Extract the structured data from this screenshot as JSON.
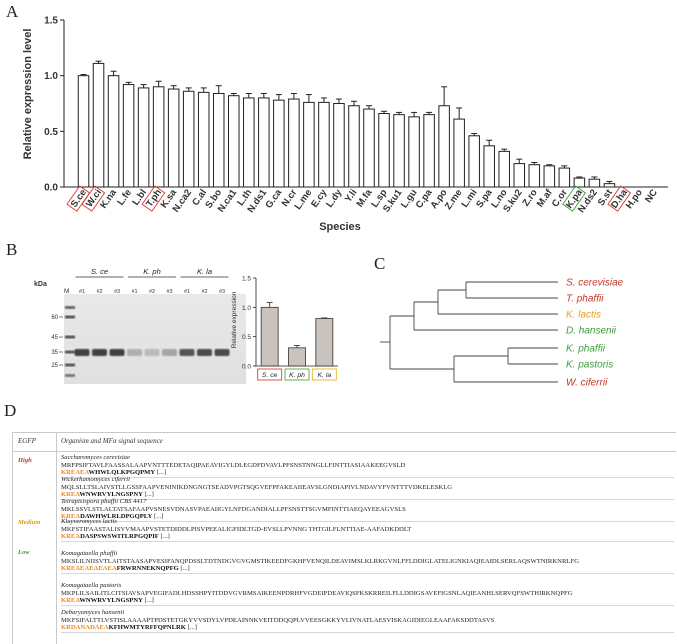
{
  "panels": {
    "a": "A",
    "b": "B",
    "c": "C",
    "d": "D"
  },
  "panel_a": {
    "chart_data": {
      "type": "bar",
      "title": "",
      "xlabel": "Species",
      "ylabel": "Relative expression level",
      "ylim": [
        0,
        1.5
      ],
      "yticks": [
        "0.0",
        "0.5",
        "1.0",
        "1.5"
      ],
      "categories": [
        "S.ce",
        "W.ci",
        "K.na",
        "L.fe",
        "L.bl",
        "T.ph",
        "K.sa",
        "N.ca2",
        "C.al",
        "S.bo",
        "N.ca1",
        "L.th",
        "N.ds1",
        "G.ca",
        "N.cr",
        "L.me",
        "E.cy",
        "L.dy",
        "Y.li",
        "M.fa",
        "L.sp",
        "S.ku1",
        "L.gu",
        "C.pa",
        "A.po",
        "Z.me",
        "L.mi",
        "S.pa",
        "L.no",
        "S.ku2",
        "Z.ro",
        "M.af",
        "C.or",
        "K.pa",
        "N.ds2",
        "S.st",
        "D.ha",
        "H.po",
        "NC"
      ],
      "values": [
        1.0,
        1.11,
        1.0,
        0.92,
        0.89,
        0.9,
        0.88,
        0.86,
        0.85,
        0.84,
        0.82,
        0.8,
        0.8,
        0.78,
        0.79,
        0.76,
        0.76,
        0.75,
        0.73,
        0.7,
        0.66,
        0.65,
        0.63,
        0.65,
        0.73,
        0.61,
        0.46,
        0.37,
        0.32,
        0.21,
        0.2,
        0.19,
        0.17,
        0.08,
        0.07,
        0.03,
        0.0,
        0.0,
        0.0
      ],
      "errors": [
        0.01,
        0.02,
        0.04,
        0.02,
        0.03,
        0.05,
        0.03,
        0.03,
        0.04,
        0.07,
        0.02,
        0.04,
        0.04,
        0.05,
        0.05,
        0.07,
        0.04,
        0.04,
        0.04,
        0.03,
        0.02,
        0.02,
        0.04,
        0.02,
        0.17,
        0.1,
        0.02,
        0.05,
        0.02,
        0.04,
        0.02,
        0.01,
        0.02,
        0.01,
        0.02,
        0.02,
        0.0,
        0.0,
        0.0
      ],
      "highlight_red": [
        "S.ce",
        "W.ci",
        "T.ph",
        "D.ha"
      ],
      "highlight_green": [
        "K.pa"
      ]
    }
  },
  "panel_b": {
    "gel": {
      "kda_label": "kDa",
      "marker_label": "M",
      "groups": [
        "S. ce",
        "K. ph",
        "K. la"
      ],
      "lanes": [
        "#1",
        "#2",
        "#3",
        "#1",
        "#2",
        "#3",
        "#1",
        "#2",
        "#3"
      ],
      "mw": [
        "60",
        "45",
        "35",
        "25"
      ]
    },
    "chart_data": {
      "type": "bar",
      "categories": [
        "S. ce",
        "K. ph",
        "K. la"
      ],
      "values": [
        1.0,
        0.31,
        0.81
      ],
      "errors": [
        0.08,
        0.04,
        0.01
      ],
      "ylabel": "Relative expression",
      "ylim": [
        0,
        1.5
      ],
      "yticks": [
        "0.0",
        "0.5",
        "1.0",
        "1.5"
      ],
      "box_colors": [
        "#d9483b",
        "#5aa644",
        "#e8b427"
      ]
    }
  },
  "panel_c": {
    "species": [
      {
        "name": "S. cerevisiae",
        "color": "#c0392b"
      },
      {
        "name": "T. phaffii",
        "color": "#c0392b"
      },
      {
        "name": "K. lactis",
        "color": "#e0a21b"
      },
      {
        "name": "D. hansenii",
        "color": "#3f9b3a"
      },
      {
        "name": "K. phaffii",
        "color": "#3f9b3a"
      },
      {
        "name": "K. pastoris",
        "color": "#3f9b3a"
      },
      {
        "name": "W. ciferrii",
        "color": "#c0392b"
      }
    ]
  },
  "panel_d": {
    "header": {
      "col1": "EGFP",
      "col2": "Organism and MFα signal sequence"
    },
    "levels": {
      "high": "High",
      "medium": "Medium",
      "low": "Low"
    },
    "level_colors": {
      "high": "#c0392b",
      "medium": "#d4a017",
      "low": "#3f9b3a"
    },
    "rows": [
      {
        "org": "Saccharomyces cerevisiae",
        "seq": "MRFPSIFTAVLFAASSALAAPVNTTTEDETAQIPAEAVIGYLDLEGDFDVAVLPFSNSTNNGLLFINTTIASIAAKEEGVSLD",
        "m1": "KREAEA",
        "m2": "",
        "tail": "WHWLQLKPGQPMY",
        "more": " [...]"
      },
      {
        "org": "Wickerhamomyces ciferrii",
        "seq": "MQLSLLTSLAIVSTLLGSSFAAPVENINIKDNGNGTSEADVPGTSQGVEFPFAKEAIIEAVSLGNDIAPIVLNDAVYFVNTTTVDKELESKLG",
        "m1": "KREA",
        "m2": "",
        "tail": "WNWRVYLNGSPNY",
        "more": " [...]"
      },
      {
        "org": "Tetrapisispora phaffii CBS 4417",
        "seq": "MKLSSVLSTLALTATSAFAAPVSNESVDNASVPAEAIIGYLNFDGANDIALLPFSNSTTSGVMFINTTIAEQAYEEAGVSLS",
        "m1": "KREA",
        "m2": "",
        "tail": "DAWHWLRLDPGQPLY",
        "more": " [...]"
      },
      {
        "org": "Kluyveromyces lactis",
        "seq": "MKFSTIFAASTALISVVMAAPVSTETDIDDLPISVPEEALIGFIDLTGD-EVSLLPVNNG THTGILFLNTTIAE-AAFADKDDLT",
        "m1": "KREA",
        "m2": "",
        "tail": "DASPSWSWITLRPGQPIF",
        "more": " [...]"
      },
      {
        "org": "Komagataella phaffii",
        "seq": "MKSLILNIISVTLAITSTAASAPVESIFANQPDSSLTDTNDGVGVGMSTIKEEDFGKHFVENQILDEAVIMSLKLRKGVNLFFLDDIGLATELIGNKIAQIEAIDLSERLAQSWTNIRKNRLFG",
        "m1": "KREAEAEAEAEA",
        "m2": "",
        "tail": "FRWRNNEKNQPFG",
        "more": " [...]"
      },
      {
        "org": "Komagataella pastoris",
        "seq": "MKPLILSAILITLCITSIAVSAPVEGIFADLHDSSHPYITDDVGVRMSAIKEENPDRHFVGDEIPDEAVIQSFKSKRREILFLLDDIGSAVEFIGSNLAQIEANHLSERVQFSWTHIRKNQPFG",
        "m1": "KREA",
        "m2": "",
        "tail": "WNWRVYLNGSPNY",
        "more": " [...]"
      },
      {
        "org": "Debaryomyces hansenii",
        "seq": "MKFSIFALTTLVSTISLAAAAPTPDSTETGKYVVSDYLVPDEAINNKVEITDDQQPLVVEESGKKYVLIVNATLAESVISKAGIDIEGLEAAFAKSDDTASVS",
        "m1": "KRDANADAEA",
        "m2": "",
        "tail": "KFHWMTYRFFQPNLRK",
        "more": " [...]"
      }
    ]
  }
}
